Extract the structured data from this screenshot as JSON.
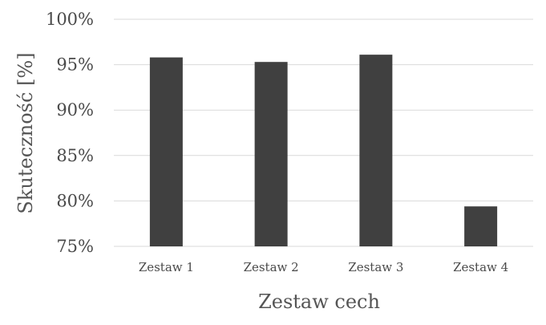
{
  "chart_data": {
    "type": "bar",
    "categories": [
      "Zestaw 1",
      "Zestaw 2",
      "Zestaw 3",
      "Zestaw 4"
    ],
    "values": [
      95.8,
      95.3,
      96.1,
      79.4
    ],
    "xlabel": "Zestaw cech",
    "ylabel": "Skuteczność [%]",
    "ylim": [
      75,
      100
    ],
    "yticks": [
      75,
      80,
      85,
      90,
      95,
      100
    ],
    "ytick_labels": [
      "75%",
      "80%",
      "85%",
      "90%",
      "95%",
      "100%"
    ],
    "grid": true,
    "legend": "none",
    "colors": {
      "bar": "#404040",
      "grid": "#d9d9d9"
    }
  }
}
